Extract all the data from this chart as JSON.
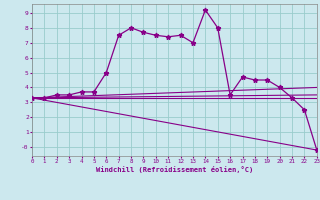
{
  "xlabel": "Windchill (Refroidissement éolien,°C)",
  "bg_color": "#cce8ee",
  "line_color": "#880088",
  "grid_color": "#99cccc",
  "xlim": [
    0,
    23
  ],
  "ylim": [
    -0.6,
    9.6
  ],
  "xticks": [
    0,
    1,
    2,
    3,
    4,
    5,
    6,
    7,
    8,
    9,
    10,
    11,
    12,
    13,
    14,
    15,
    16,
    17,
    18,
    19,
    20,
    21,
    22,
    23
  ],
  "yticks": [
    0,
    1,
    2,
    3,
    4,
    5,
    6,
    7,
    8,
    9
  ],
  "ytick_labels": [
    "-0",
    "1",
    "2",
    "3",
    "4",
    "5",
    "6",
    "7",
    "8",
    "9"
  ],
  "main_x": [
    0,
    1,
    2,
    3,
    4,
    5,
    6,
    7,
    8,
    9,
    10,
    11,
    12,
    13,
    14,
    15,
    16,
    17,
    18,
    19,
    20,
    21,
    22,
    23
  ],
  "main_y": [
    3.3,
    3.3,
    3.5,
    3.5,
    3.7,
    3.7,
    5.0,
    7.5,
    8.0,
    7.7,
    7.5,
    7.4,
    7.5,
    7.0,
    9.2,
    8.0,
    3.5,
    4.7,
    4.5,
    4.5,
    4.0,
    3.3,
    2.5,
    -0.2
  ],
  "ref_lines": [
    {
      "x": [
        0,
        23
      ],
      "y": [
        3.3,
        4.0
      ]
    },
    {
      "x": [
        0,
        23
      ],
      "y": [
        3.3,
        3.5
      ]
    },
    {
      "x": [
        0,
        23
      ],
      "y": [
        3.3,
        3.3
      ]
    },
    {
      "x": [
        0,
        23
      ],
      "y": [
        3.3,
        -0.2
      ]
    }
  ]
}
